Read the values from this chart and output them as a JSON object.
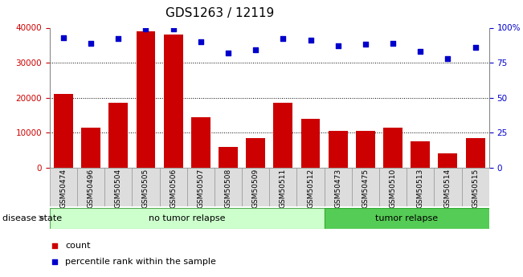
{
  "title": "GDS1263 / 12119",
  "samples": [
    "GSM50474",
    "GSM50496",
    "GSM50504",
    "GSM50505",
    "GSM50506",
    "GSM50507",
    "GSM50508",
    "GSM50509",
    "GSM50511",
    "GSM50512",
    "GSM50473",
    "GSM50475",
    "GSM50510",
    "GSM50513",
    "GSM50514",
    "GSM50515"
  ],
  "counts": [
    21000,
    11500,
    18500,
    39000,
    38000,
    14500,
    6000,
    8500,
    18500,
    14000,
    10500,
    10500,
    11500,
    7500,
    4000,
    8500
  ],
  "percentiles": [
    93,
    89,
    92,
    99,
    99,
    90,
    82,
    84,
    92,
    91,
    87,
    88,
    89,
    83,
    78,
    86
  ],
  "bar_color": "#cc0000",
  "dot_color": "#0000cc",
  "left_ylim": [
    0,
    40000
  ],
  "right_ylim": [
    0,
    100
  ],
  "left_yticks": [
    0,
    10000,
    20000,
    30000,
    40000
  ],
  "right_yticks": [
    0,
    25,
    50,
    75,
    100
  ],
  "right_yticklabels": [
    "0",
    "25",
    "50",
    "75",
    "100%"
  ],
  "grid_values": [
    10000,
    20000,
    30000
  ],
  "no_relapse_label": "no tumor relapse",
  "relapse_label": "tumor relapse",
  "disease_state_label": "disease state",
  "no_relapse_count": 10,
  "relapse_count": 6,
  "no_relapse_color": "#ccffcc",
  "relapse_color": "#55cc55",
  "bg_color": "#dddddd",
  "count_legend": "count",
  "percentile_legend": "percentile rank within the sample",
  "title_fontsize": 11,
  "tick_fontsize": 7.5,
  "label_fontsize": 8
}
